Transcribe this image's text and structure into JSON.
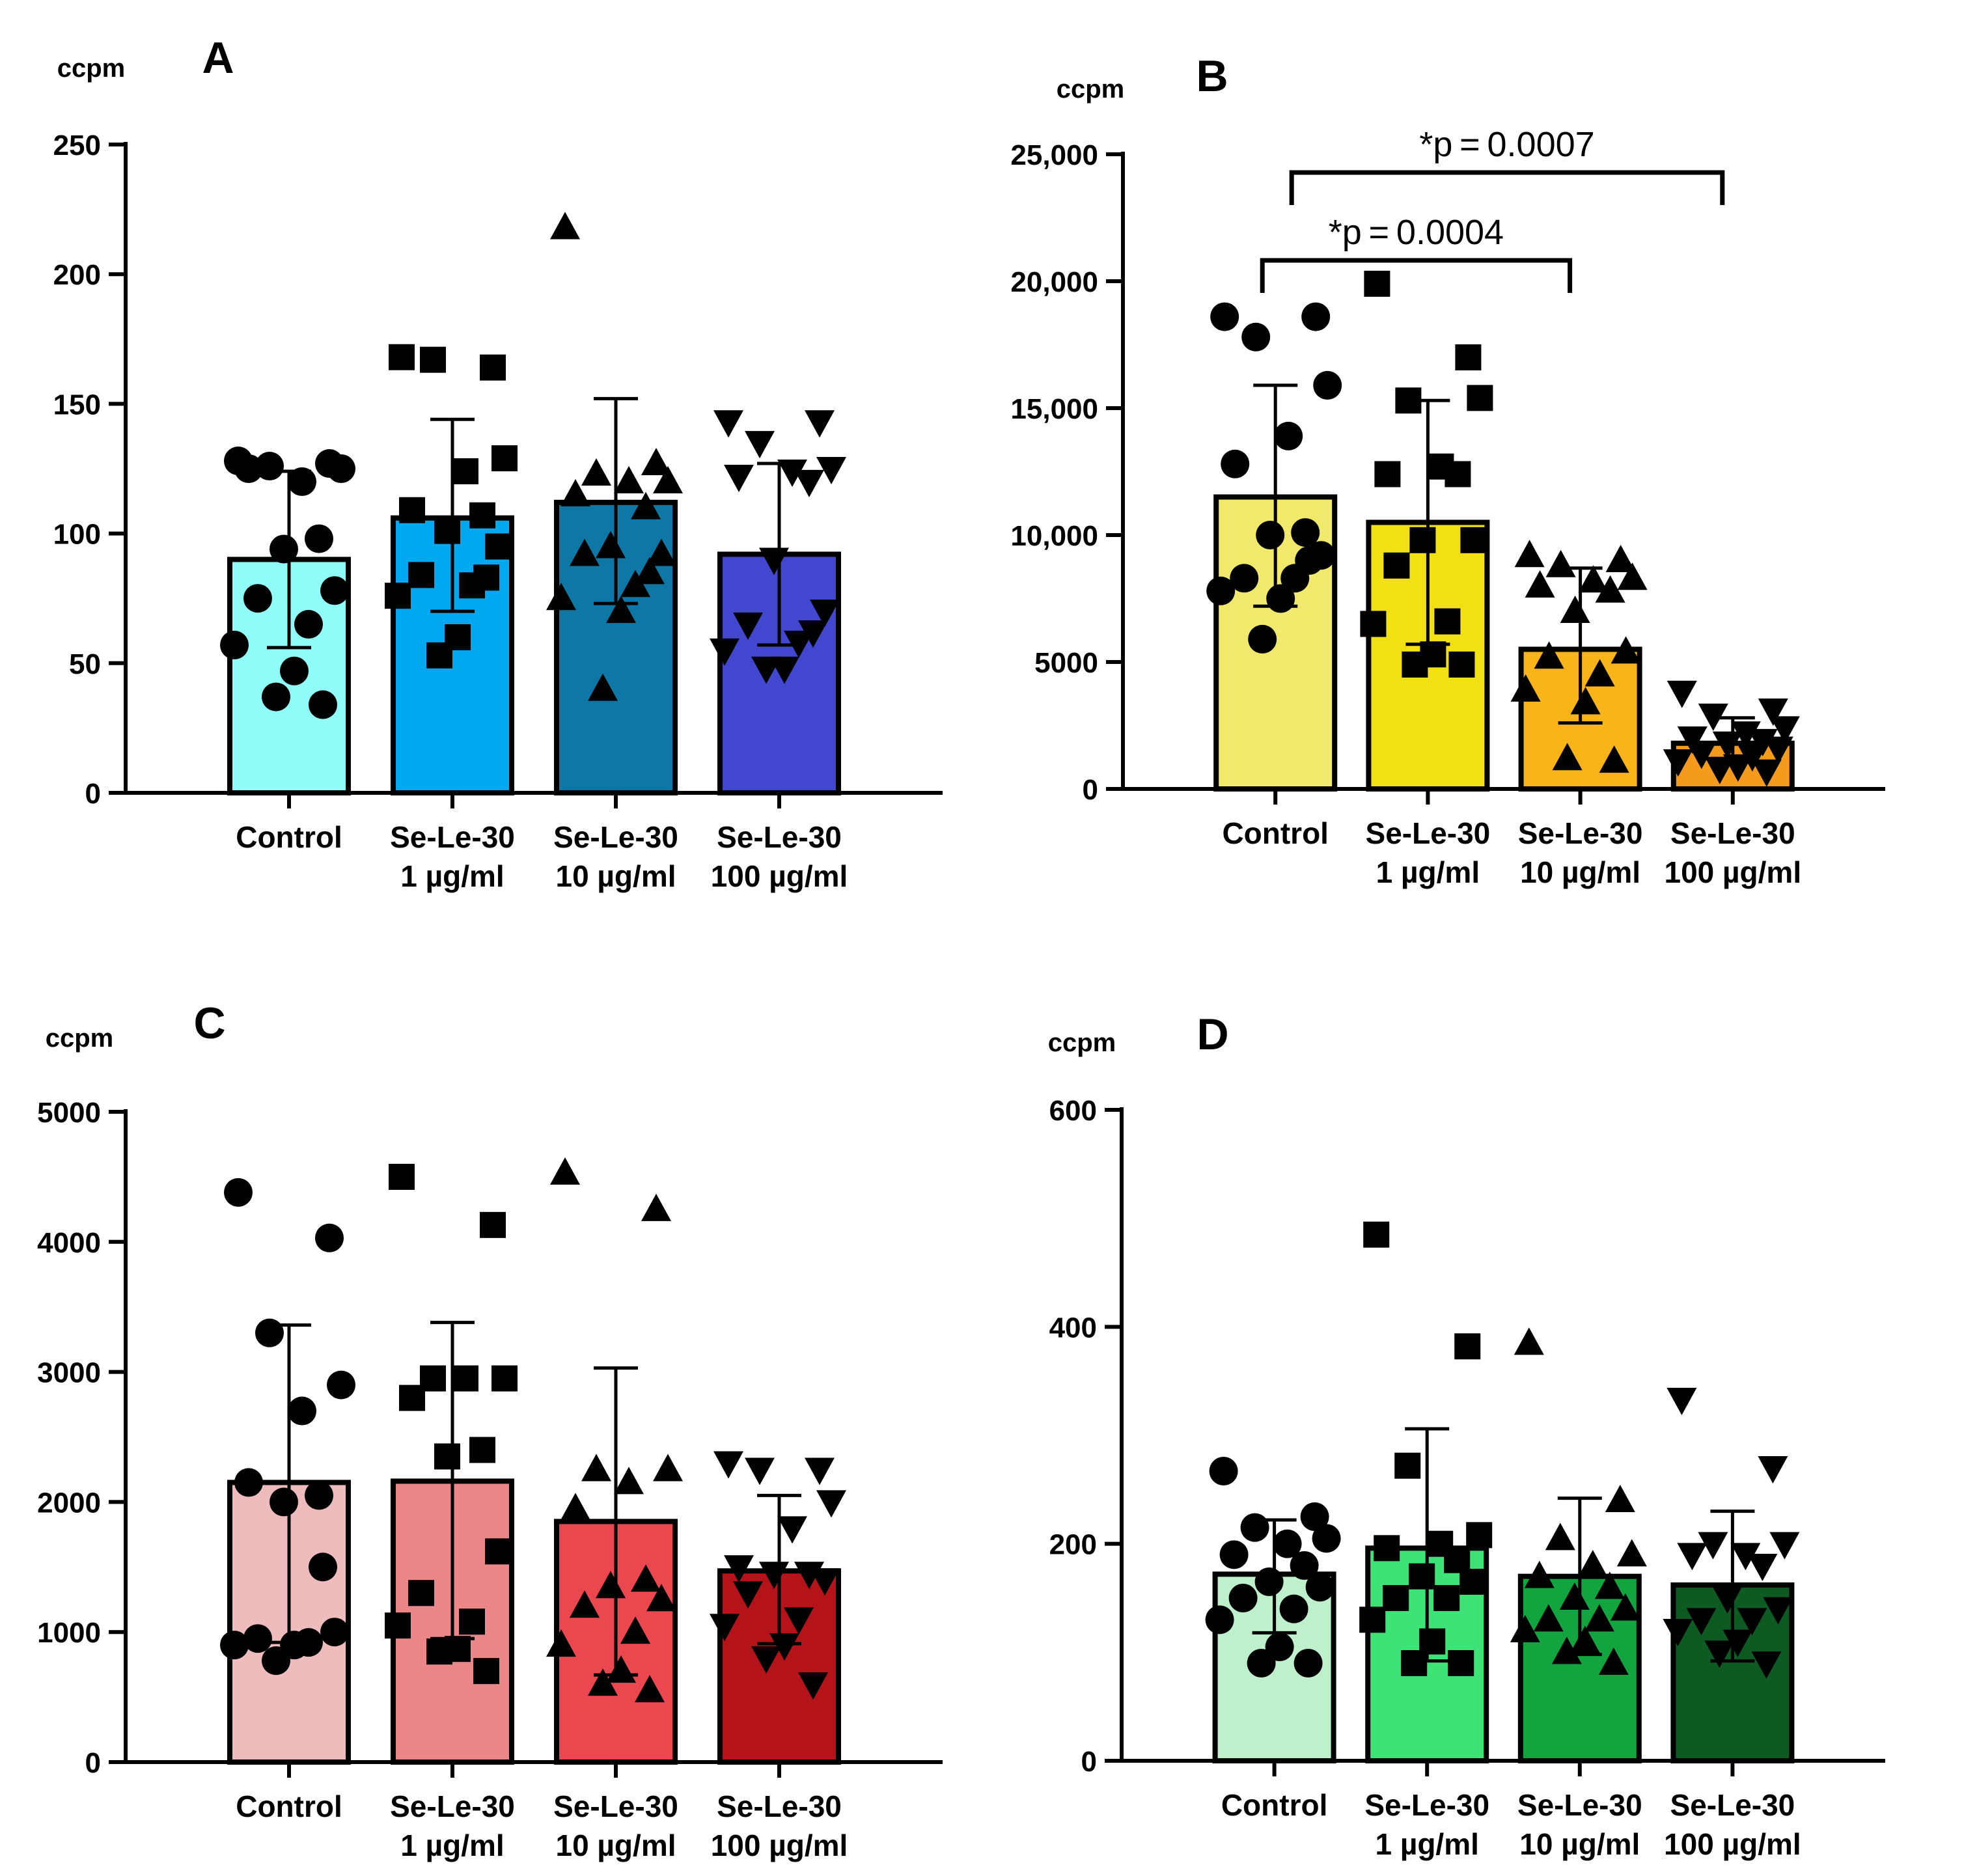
{
  "figure": "ccpm comparison across four panels",
  "chart_data": [
    {
      "panel": "A",
      "type": "bar",
      "ylabel": "ccpm",
      "ylim": [
        0,
        250
      ],
      "yticks": [
        0,
        50,
        100,
        150,
        200,
        250
      ],
      "ytick_labels": [
        "0",
        "50",
        "100",
        "150",
        "200",
        "250"
      ],
      "categories": [
        [
          "Control"
        ],
        [
          "Se-Le-30",
          "1 µg/ml"
        ],
        [
          "Se-Le-30",
          "10 µg/ml"
        ],
        [
          "Se-Le-30",
          "100 µg/ml"
        ]
      ],
      "colors": [
        "#90fdf9",
        "#00a8ef",
        "#0f77a6",
        "#4148cf"
      ],
      "markers": [
        "circle",
        "square",
        "triangle-up",
        "triangle-down"
      ],
      "means": [
        90,
        106,
        112,
        92
      ],
      "err_low": [
        56,
        70,
        73,
        57
      ],
      "err_high": [
        124,
        144,
        152,
        127
      ],
      "points": [
        [
          128,
          127,
          126,
          125,
          120,
          125,
          98,
          94,
          78,
          75,
          65,
          57,
          47,
          37,
          34
        ],
        [
          168,
          164,
          167,
          129,
          124,
          109,
          107,
          101,
          95,
          84,
          80,
          76,
          60,
          53,
          83
        ],
        [
          218,
          127,
          123,
          120,
          120,
          115,
          110,
          95,
          92,
          92,
          80,
          75,
          70,
          40,
          85
        ],
        [
          143,
          143,
          135,
          125,
          124,
          122,
          120,
          90,
          70,
          65,
          58,
          55,
          48,
          48,
          62
        ]
      ]
    },
    {
      "panel": "B",
      "type": "bar",
      "ylabel": "ccpm",
      "ylim": [
        0,
        25000
      ],
      "yticks": [
        0,
        5000,
        10000,
        15000,
        20000,
        25000
      ],
      "ytick_labels": [
        "0",
        "5000",
        "10,000",
        "15,000",
        "20,000",
        "25,000"
      ],
      "categories": [
        [
          "Control"
        ],
        [
          "Se-Le-30",
          "1 µg/ml"
        ],
        [
          "Se-Le-30",
          "10 µg/ml"
        ],
        [
          "Se-Le-30",
          "100 µg/ml"
        ]
      ],
      "colors": [
        "#f1e96b",
        "#f1e114",
        "#f9b41a",
        "#f49b1e"
      ],
      "markers": [
        "circle",
        "square",
        "triangle-up",
        "triangle-down"
      ],
      "means": [
        11500,
        10500,
        5500,
        1800
      ],
      "err_low": [
        7200,
        5700,
        2600,
        1200
      ],
      "err_high": [
        15900,
        15300,
        8700,
        2800
      ],
      "points": [
        [
          18600,
          18600,
          17800,
          15900,
          13900,
          12800,
          10100,
          10000,
          9200,
          8300,
          8300,
          7800,
          7500,
          5900,
          9000
        ],
        [
          19900,
          17000,
          15300,
          15400,
          12700,
          12400,
          12400,
          9800,
          9800,
          8800,
          6600,
          6500,
          5300,
          4900,
          4900
        ],
        [
          9200,
          9000,
          8800,
          8300,
          8200,
          8000,
          7800,
          7000,
          5400,
          5200,
          4500,
          3900,
          3400,
          1200,
          1100
        ],
        [
          3800,
          3100,
          2900,
          2400,
          2200,
          2000,
          1900,
          1800,
          1600,
          1400,
          1300,
          1100,
          900,
          800,
          700
        ]
      ],
      "annotations": [
        {
          "label": "*p = 0.0004",
          "from": 0,
          "to": 2
        },
        {
          "label": "*p = 0.0007",
          "from": 0,
          "to": 3
        }
      ]
    },
    {
      "panel": "C",
      "type": "bar",
      "ylabel": "ccpm",
      "ylim": [
        0,
        5000
      ],
      "yticks": [
        0,
        1000,
        2000,
        3000,
        4000,
        5000
      ],
      "ytick_labels": [
        "0",
        "1000",
        "2000",
        "3000",
        "4000",
        "5000"
      ],
      "categories": [
        [
          "Control"
        ],
        [
          "Se-Le-30",
          "1 µg/ml"
        ],
        [
          "Se-Le-30",
          "10 µg/ml"
        ],
        [
          "Se-Le-30",
          "100 µg/ml"
        ]
      ],
      "colors": [
        "#efbcbd",
        "#ec8789",
        "#ea474e",
        "#b5131a"
      ],
      "markers": [
        "circle",
        "square",
        "triangle-up",
        "triangle-down"
      ],
      "means": [
        2150,
        2160,
        1850,
        1470
      ],
      "err_low": [
        920,
        950,
        670,
        910
      ],
      "err_high": [
        3360,
        3380,
        3030,
        2050
      ],
      "points": [
        [
          4380,
          4030,
          3300,
          2900,
          2700,
          2150,
          2050,
          2000,
          1000,
          950,
          920,
          900,
          900,
          780,
          1500
        ],
        [
          4500,
          4130,
          2950,
          2950,
          2950,
          2800,
          2400,
          2350,
          1620,
          1300,
          1080,
          1050,
          870,
          850,
          700
        ],
        [
          4530,
          4250,
          2250,
          2250,
          2150,
          1950,
          1400,
          1350,
          1250,
          1200,
          1000,
          900,
          700,
          600,
          550
        ],
        [
          2300,
          2250,
          2250,
          2000,
          1800,
          1500,
          1450,
          1450,
          1400,
          1300,
          1100,
          1050,
          900,
          800,
          600
        ]
      ]
    },
    {
      "panel": "D",
      "type": "bar",
      "ylabel": "ccpm",
      "ylim": [
        0,
        600
      ],
      "yticks": [
        0,
        200,
        400,
        600
      ],
      "ytick_labels": [
        "0",
        "200",
        "400",
        "600"
      ],
      "categories": [
        [
          "Control"
        ],
        [
          "Se-Le-30",
          "1 µg/ml"
        ],
        [
          "Se-Le-30",
          "10 µg/ml"
        ],
        [
          "Se-Le-30",
          "100 µg/ml"
        ]
      ],
      "colors": [
        "#bff0cc",
        "#3ee378",
        "#12a53f",
        "#0d5a23"
      ],
      "markers": [
        "circle",
        "square",
        "triangle-up",
        "triangle-down"
      ],
      "means": [
        172,
        196,
        170,
        162
      ],
      "err_low": [
        118,
        92,
        98,
        92
      ],
      "err_high": [
        222,
        306,
        242,
        230
      ],
      "points": [
        [
          267,
          225,
          215,
          205,
          200,
          190,
          180,
          165,
          160,
          150,
          140,
          130,
          105,
          90,
          90
        ],
        [
          485,
          382,
          272,
          208,
          200,
          196,
          185,
          170,
          165,
          150,
          150,
          130,
          110,
          90,
          90
        ],
        [
          385,
          240,
          205,
          190,
          180,
          170,
          160,
          150,
          140,
          130,
          130,
          120,
          110,
          100,
          90
        ],
        [
          333,
          270,
          200,
          200,
          190,
          190,
          180,
          150,
          140,
          130,
          130,
          120,
          110,
          100,
          90
        ]
      ]
    }
  ]
}
